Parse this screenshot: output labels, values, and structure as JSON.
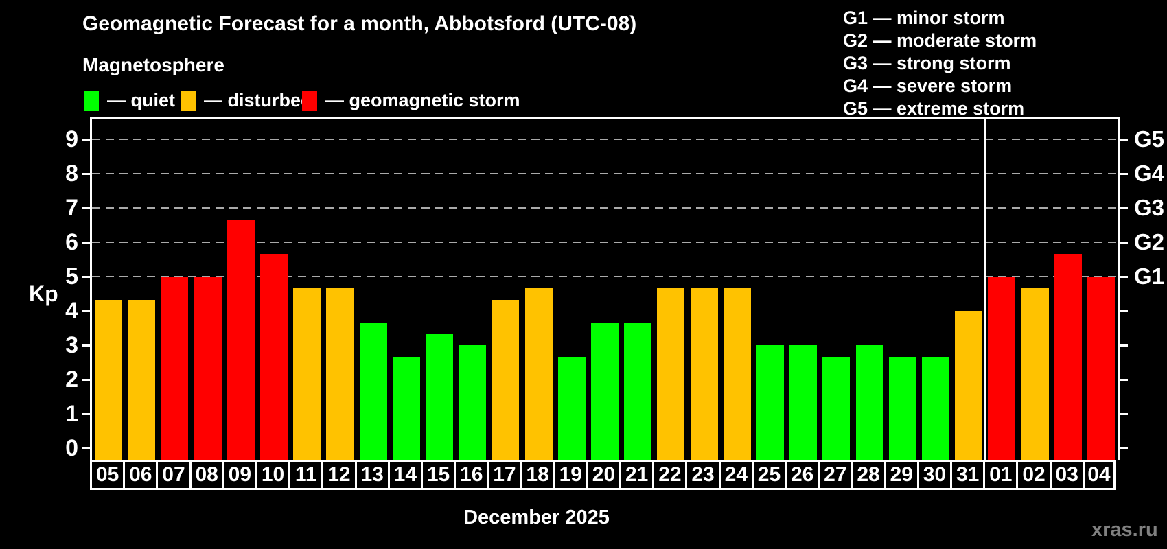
{
  "page": {
    "title": "Geomagnetic Forecast for a month, Abbotsford (UTC-08)",
    "subtitle": "Magnetosphere",
    "watermark": "xras.ru"
  },
  "colors": {
    "quiet": "#00ff00",
    "disturbed": "#ffc200",
    "storm": "#ff0000",
    "background": "#000000",
    "grid": "#aaaaaa",
    "text": "#ffffff",
    "watermark": "#808080"
  },
  "legend": {
    "items": [
      {
        "status": "quiet",
        "label": "— quiet"
      },
      {
        "status": "disturbed",
        "label": "— disturbed"
      },
      {
        "status": "storm",
        "label": "— geomagnetic storm"
      }
    ]
  },
  "g_legend": {
    "lines": [
      "G1 — minor storm",
      "G2 — moderate storm",
      "G3 — strong storm",
      "G4 — severe storm",
      "G5 — extreme storm"
    ]
  },
  "chart_data": {
    "type": "bar",
    "title": "Geomagnetic Forecast for a month, Abbotsford (UTC-08)",
    "ylabel": "Kp",
    "month_label": "December 2025",
    "ylim": [
      0,
      9.6
    ],
    "yticks": [
      0,
      1,
      2,
      3,
      4,
      5,
      6,
      7,
      8,
      9
    ],
    "gridlines_at": [
      5,
      6,
      7,
      8,
      9
    ],
    "grid": true,
    "right_axis_labels": [
      {
        "kp": 5,
        "text": "G1"
      },
      {
        "kp": 6,
        "text": "G2"
      },
      {
        "kp": 7,
        "text": "G3"
      },
      {
        "kp": 8,
        "text": "G4"
      },
      {
        "kp": 9,
        "text": "G5"
      }
    ],
    "separator_after_index": 26,
    "bars": [
      {
        "day": "05",
        "kp": 4.33,
        "status": "disturbed"
      },
      {
        "day": "06",
        "kp": 4.33,
        "status": "disturbed"
      },
      {
        "day": "07",
        "kp": 5.0,
        "status": "storm"
      },
      {
        "day": "08",
        "kp": 5.0,
        "status": "storm"
      },
      {
        "day": "09",
        "kp": 6.67,
        "status": "storm"
      },
      {
        "day": "10",
        "kp": 5.67,
        "status": "storm"
      },
      {
        "day": "11",
        "kp": 4.67,
        "status": "disturbed"
      },
      {
        "day": "12",
        "kp": 4.67,
        "status": "disturbed"
      },
      {
        "day": "13",
        "kp": 3.67,
        "status": "quiet"
      },
      {
        "day": "14",
        "kp": 2.67,
        "status": "quiet"
      },
      {
        "day": "15",
        "kp": 3.33,
        "status": "quiet"
      },
      {
        "day": "16",
        "kp": 3.0,
        "status": "quiet"
      },
      {
        "day": "17",
        "kp": 4.33,
        "status": "disturbed"
      },
      {
        "day": "18",
        "kp": 4.67,
        "status": "disturbed"
      },
      {
        "day": "19",
        "kp": 2.67,
        "status": "quiet"
      },
      {
        "day": "20",
        "kp": 3.67,
        "status": "quiet"
      },
      {
        "day": "21",
        "kp": 3.67,
        "status": "quiet"
      },
      {
        "day": "22",
        "kp": 4.67,
        "status": "disturbed"
      },
      {
        "day": "23",
        "kp": 4.67,
        "status": "disturbed"
      },
      {
        "day": "24",
        "kp": 4.67,
        "status": "disturbed"
      },
      {
        "day": "25",
        "kp": 3.0,
        "status": "quiet"
      },
      {
        "day": "26",
        "kp": 3.0,
        "status": "quiet"
      },
      {
        "day": "27",
        "kp": 2.67,
        "status": "quiet"
      },
      {
        "day": "28",
        "kp": 3.0,
        "status": "quiet"
      },
      {
        "day": "29",
        "kp": 2.67,
        "status": "quiet"
      },
      {
        "day": "30",
        "kp": 2.67,
        "status": "quiet"
      },
      {
        "day": "31",
        "kp": 4.0,
        "status": "disturbed"
      },
      {
        "day": "01",
        "kp": 5.0,
        "status": "storm"
      },
      {
        "day": "02",
        "kp": 4.67,
        "status": "disturbed"
      },
      {
        "day": "03",
        "kp": 5.67,
        "status": "storm"
      },
      {
        "day": "04",
        "kp": 5.0,
        "status": "storm"
      }
    ]
  }
}
